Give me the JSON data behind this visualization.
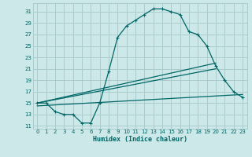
{
  "xlabel": "Humidex (Indice chaleur)",
  "xlim": [
    -0.5,
    23.5
  ],
  "ylim": [
    10.5,
    32.5
  ],
  "xticks": [
    0,
    1,
    2,
    3,
    4,
    5,
    6,
    7,
    8,
    9,
    10,
    11,
    12,
    13,
    14,
    15,
    16,
    17,
    18,
    19,
    20,
    21,
    22,
    23
  ],
  "yticks": [
    11,
    13,
    15,
    17,
    19,
    21,
    23,
    25,
    27,
    29,
    31
  ],
  "bg_color": "#cce8e8",
  "grid_color": "#aacccc",
  "line_color": "#006666",
  "curve1_x": [
    0,
    1,
    2,
    3,
    4,
    5,
    6,
    7,
    8,
    9,
    10,
    11,
    12,
    13,
    14,
    15,
    16,
    17,
    18,
    19,
    20,
    21,
    22,
    23
  ],
  "curve1_y": [
    15.0,
    15.0,
    13.5,
    13.0,
    13.0,
    11.5,
    11.5,
    15.0,
    20.5,
    26.5,
    28.5,
    29.5,
    30.5,
    31.5,
    31.5,
    31.0,
    30.5,
    27.5,
    27.0,
    25.0,
    21.5,
    19.0,
    17.0,
    16.0
  ],
  "curve2_x": [
    0,
    20
  ],
  "curve2_y": [
    15.0,
    22.0
  ],
  "curve3_x": [
    0,
    20
  ],
  "curve3_y": [
    15.0,
    21.0
  ],
  "curve4_x": [
    0,
    23
  ],
  "curve4_y": [
    14.5,
    16.5
  ]
}
